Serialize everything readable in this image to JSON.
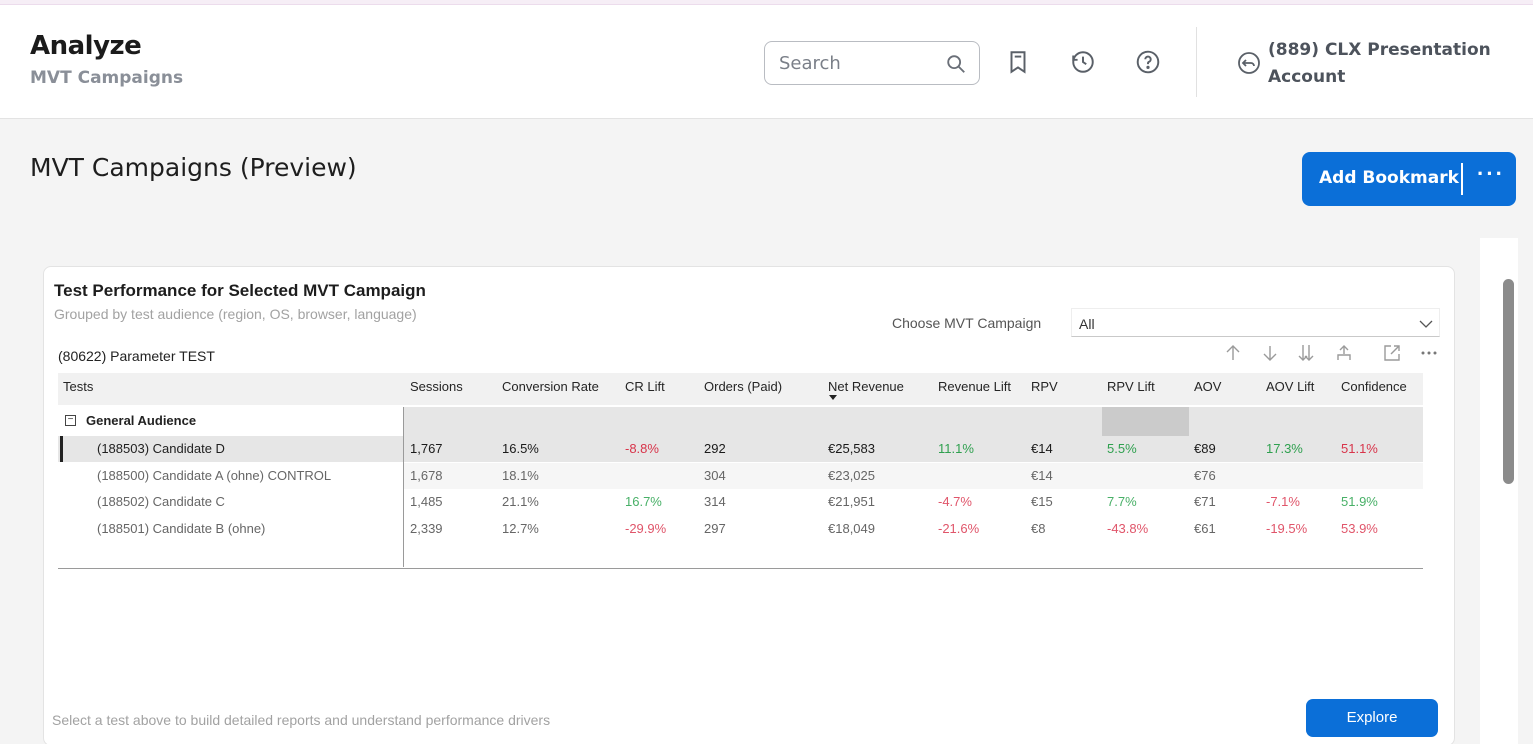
{
  "header": {
    "title": "Analyze",
    "subtitle": "MVT Campaigns",
    "search_placeholder": "Search",
    "account": "(889) CLX Presentation Account"
  },
  "page": {
    "title": "MVT Campaigns (Preview)",
    "add_bookmark_label": "Add Bookmark",
    "more_label": "···"
  },
  "card": {
    "title": "Test Performance for Selected MVT Campaign",
    "subtitle": "Grouped by test audience (region, OS, browser, language)",
    "choose_label": "Choose MVT Campaign",
    "choose_value": "All",
    "param_label": "(80622) Parameter TEST",
    "footer_note": "Select a test above to build detailed reports and understand performance drivers",
    "explore_label": "Explore"
  },
  "table": {
    "columns": [
      "Tests",
      "Sessions",
      "Conversion Rate",
      "CR Lift",
      "Orders (Paid)",
      "Net Revenue",
      "Revenue Lift",
      "RPV",
      "RPV Lift",
      "AOV",
      "AOV Lift",
      "Confidence"
    ],
    "group_label": "General Audience",
    "rows": [
      [
        "(188503) Candidate D",
        "1,767",
        "16.5%",
        "-8.8%",
        "292",
        "€25,583",
        "11.1%",
        "€14",
        "5.5%",
        "€89",
        "17.3%",
        "51.1%"
      ],
      [
        "(188500) Candidate A (ohne) CONTROL",
        "1,678",
        "18.1%",
        "",
        "304",
        "€23,025",
        "",
        "€14",
        "",
        "€76",
        "",
        ""
      ],
      [
        "(188502) Candidate C",
        "1,485",
        "21.1%",
        "16.7%",
        "314",
        "€21,951",
        "-4.7%",
        "€15",
        "7.7%",
        "€71",
        "-7.1%",
        "51.9%"
      ],
      [
        "(188501) Candidate B (ohne)",
        "2,339",
        "12.7%",
        "-29.9%",
        "297",
        "€18,049",
        "-21.6%",
        "€8",
        "-43.8%",
        "€61",
        "-19.5%",
        "53.9%"
      ]
    ]
  },
  "colors": {
    "accent": "#0b6fd8",
    "positive": "#2fa04f",
    "negative": "#d8344a"
  }
}
